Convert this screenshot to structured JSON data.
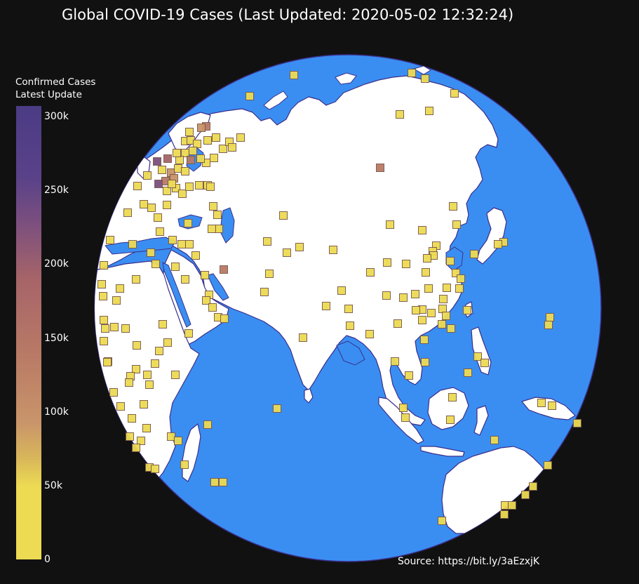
{
  "title": "Global COVID-19 Cases (Last Updated: 2020-05-02 12:32:24)",
  "source": "Source: https://bit.ly/3aEzxjK",
  "colorbar": {
    "title_line1": "Confirmed Cases",
    "title_line2": "Latest Update",
    "ticks": [
      "300k",
      "250k",
      "200k",
      "150k",
      "100k",
      "50k",
      "0"
    ]
  },
  "colors": {
    "ocean": "#3a8ef2",
    "land": "#ffffff",
    "coast": "#3b2f8a",
    "background": "#111111",
    "marker_low": "#eddb53",
    "marker_mid": "#b97a66",
    "marker_high": "#7c4f7e"
  },
  "map": {
    "projection": "orthographic",
    "center": "Asia",
    "marker_symbol": "square"
  }
}
